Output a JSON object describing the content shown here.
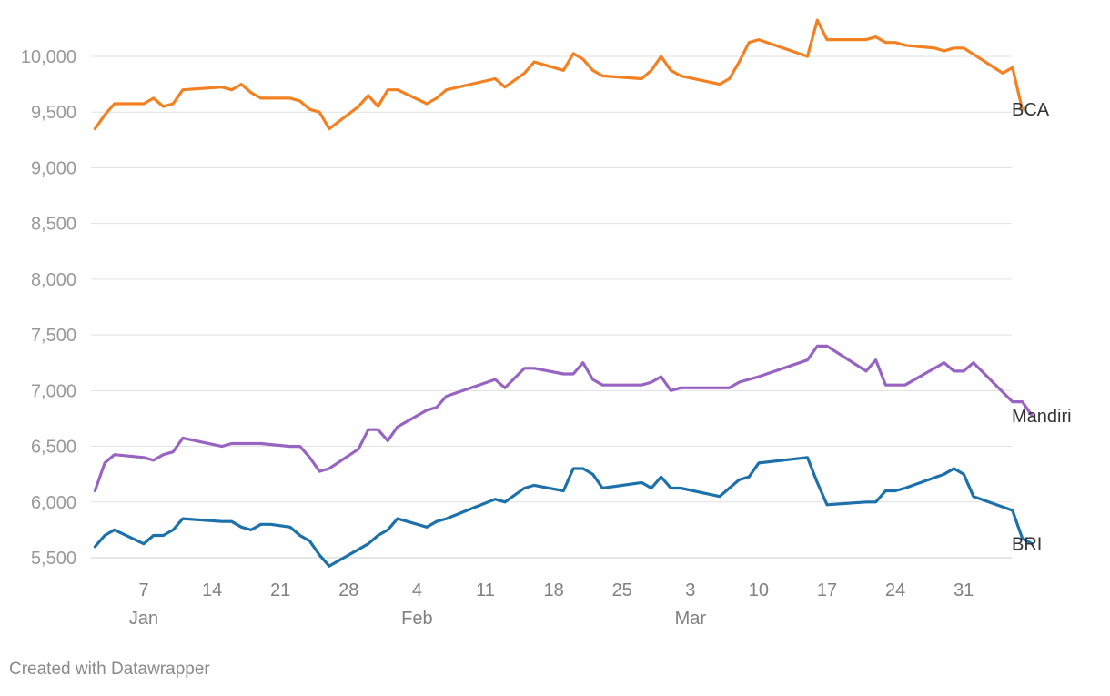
{
  "chart_data": {
    "type": "line",
    "title": "",
    "xlabel": "",
    "ylabel": "",
    "ylim": [
      5500,
      10000
    ],
    "yticks": [
      5500,
      6000,
      6500,
      7000,
      7500,
      8000,
      8500,
      9000,
      9500,
      10000
    ],
    "ytick_labels": [
      "5,500",
      "6,000",
      "6,500",
      "7,000",
      "7,500",
      "8,000",
      "8,500",
      "9,000",
      "9,500",
      "10,000"
    ],
    "xlim": [
      "2020-01-02",
      "2020-04-03"
    ],
    "xticks": [
      {
        "date": "2020-01-07",
        "label": "7",
        "month": "Jan"
      },
      {
        "date": "2020-01-14",
        "label": "14",
        "month": ""
      },
      {
        "date": "2020-01-21",
        "label": "21",
        "month": ""
      },
      {
        "date": "2020-01-28",
        "label": "28",
        "month": ""
      },
      {
        "date": "2020-02-04",
        "label": "4",
        "month": "Feb"
      },
      {
        "date": "2020-02-11",
        "label": "11",
        "month": ""
      },
      {
        "date": "2020-02-18",
        "label": "18",
        "month": ""
      },
      {
        "date": "2020-02-25",
        "label": "25",
        "month": ""
      },
      {
        "date": "2020-03-03",
        "label": "3",
        "month": "Mar"
      },
      {
        "date": "2020-03-10",
        "label": "10",
        "month": ""
      },
      {
        "date": "2020-03-17",
        "label": "17",
        "month": ""
      },
      {
        "date": "2020-03-24",
        "label": "24",
        "month": ""
      },
      {
        "date": "2020-03-31",
        "label": "31",
        "month": ""
      }
    ],
    "grid": true,
    "legend": "none",
    "series": [
      {
        "name": "BCA",
        "color": "#f38021",
        "points": [
          [
            "2020-01-02",
            9350
          ],
          [
            "2020-01-03",
            9475
          ],
          [
            "2020-01-04",
            9575
          ],
          [
            "2020-01-07",
            9575
          ],
          [
            "2020-01-08",
            9625
          ],
          [
            "2020-01-09",
            9550
          ],
          [
            "2020-01-10",
            9575
          ],
          [
            "2020-01-11",
            9700
          ],
          [
            "2020-01-15",
            9725
          ],
          [
            "2020-01-16",
            9700
          ],
          [
            "2020-01-17",
            9750
          ],
          [
            "2020-01-18",
            9675
          ],
          [
            "2020-01-19",
            9625
          ],
          [
            "2020-01-22",
            9625
          ],
          [
            "2020-01-23",
            9600
          ],
          [
            "2020-01-24",
            9525
          ],
          [
            "2020-01-25",
            9500
          ],
          [
            "2020-01-26",
            9350
          ],
          [
            "2020-01-29",
            9550
          ],
          [
            "2020-01-30",
            9650
          ],
          [
            "2020-01-31",
            9550
          ],
          [
            "2020-02-01",
            9700
          ],
          [
            "2020-02-02",
            9700
          ],
          [
            "2020-02-05",
            9575
          ],
          [
            "2020-02-06",
            9625
          ],
          [
            "2020-02-07",
            9700
          ],
          [
            "2020-02-12",
            9800
          ],
          [
            "2020-02-13",
            9725
          ],
          [
            "2020-02-15",
            9850
          ],
          [
            "2020-02-16",
            9950
          ],
          [
            "2020-02-19",
            9875
          ],
          [
            "2020-02-20",
            10025
          ],
          [
            "2020-02-21",
            9975
          ],
          [
            "2020-02-22",
            9875
          ],
          [
            "2020-02-23",
            9825
          ],
          [
            "2020-02-27",
            9800
          ],
          [
            "2020-02-28",
            9875
          ],
          [
            "2020-02-29",
            10000
          ],
          [
            "2020-03-01",
            9875
          ],
          [
            "2020-03-02",
            9825
          ],
          [
            "2020-03-06",
            9750
          ],
          [
            "2020-03-07",
            9800
          ],
          [
            "2020-03-08",
            9950
          ],
          [
            "2020-03-09",
            10125
          ],
          [
            "2020-03-10",
            10150
          ],
          [
            "2020-03-15",
            10000
          ],
          [
            "2020-03-16",
            10325
          ],
          [
            "2020-03-17",
            10150
          ],
          [
            "2020-03-21",
            10150
          ],
          [
            "2020-03-22",
            10175
          ],
          [
            "2020-03-23",
            10125
          ],
          [
            "2020-03-24",
            10125
          ],
          [
            "2020-03-25",
            10100
          ],
          [
            "2020-03-28",
            10075
          ],
          [
            "2020-03-29",
            10050
          ],
          [
            "2020-03-30",
            10075
          ],
          [
            "2020-03-31",
            10075
          ],
          [
            "2020-04-04",
            9850
          ],
          [
            "2020-04-05",
            9900
          ],
          [
            "2020-04-06",
            9525
          ]
        ]
      },
      {
        "name": "Mandiri",
        "color": "#9764c2",
        "points": [
          [
            "2020-01-02",
            6100
          ],
          [
            "2020-01-03",
            6350
          ],
          [
            "2020-01-04",
            6425
          ],
          [
            "2020-01-07",
            6400
          ],
          [
            "2020-01-08",
            6375
          ],
          [
            "2020-01-09",
            6425
          ],
          [
            "2020-01-10",
            6450
          ],
          [
            "2020-01-11",
            6575
          ],
          [
            "2020-01-15",
            6500
          ],
          [
            "2020-01-16",
            6525
          ],
          [
            "2020-01-19",
            6525
          ],
          [
            "2020-01-22",
            6500
          ],
          [
            "2020-01-23",
            6500
          ],
          [
            "2020-01-24",
            6400
          ],
          [
            "2020-01-25",
            6275
          ],
          [
            "2020-01-26",
            6300
          ],
          [
            "2020-01-29",
            6475
          ],
          [
            "2020-01-30",
            6650
          ],
          [
            "2020-01-31",
            6650
          ],
          [
            "2020-02-01",
            6550
          ],
          [
            "2020-02-02",
            6675
          ],
          [
            "2020-02-05",
            6825
          ],
          [
            "2020-02-06",
            6850
          ],
          [
            "2020-02-07",
            6950
          ],
          [
            "2020-02-12",
            7100
          ],
          [
            "2020-02-13",
            7025
          ],
          [
            "2020-02-15",
            7200
          ],
          [
            "2020-02-16",
            7200
          ],
          [
            "2020-02-19",
            7150
          ],
          [
            "2020-02-20",
            7150
          ],
          [
            "2020-02-21",
            7250
          ],
          [
            "2020-02-22",
            7100
          ],
          [
            "2020-02-23",
            7050
          ],
          [
            "2020-02-27",
            7050
          ],
          [
            "2020-02-28",
            7075
          ],
          [
            "2020-02-29",
            7125
          ],
          [
            "2020-03-01",
            7000
          ],
          [
            "2020-03-02",
            7025
          ],
          [
            "2020-03-06",
            7025
          ],
          [
            "2020-03-07",
            7025
          ],
          [
            "2020-03-08",
            7075
          ],
          [
            "2020-03-10",
            7125
          ],
          [
            "2020-03-15",
            7275
          ],
          [
            "2020-03-16",
            7400
          ],
          [
            "2020-03-17",
            7400
          ],
          [
            "2020-03-21",
            7175
          ],
          [
            "2020-03-22",
            7275
          ],
          [
            "2020-03-23",
            7050
          ],
          [
            "2020-03-25",
            7050
          ],
          [
            "2020-03-29",
            7250
          ],
          [
            "2020-03-30",
            7175
          ],
          [
            "2020-03-31",
            7175
          ],
          [
            "2020-04-01",
            7250
          ],
          [
            "2020-04-05",
            6900
          ],
          [
            "2020-04-06",
            6900
          ],
          [
            "2020-04-07",
            6775
          ]
        ]
      },
      {
        "name": "BRI",
        "color": "#1d71aa",
        "points": [
          [
            "2020-01-02",
            5600
          ],
          [
            "2020-01-03",
            5700
          ],
          [
            "2020-01-04",
            5750
          ],
          [
            "2020-01-07",
            5625
          ],
          [
            "2020-01-08",
            5700
          ],
          [
            "2020-01-09",
            5700
          ],
          [
            "2020-01-10",
            5750
          ],
          [
            "2020-01-11",
            5850
          ],
          [
            "2020-01-15",
            5825
          ],
          [
            "2020-01-16",
            5825
          ],
          [
            "2020-01-17",
            5775
          ],
          [
            "2020-01-18",
            5750
          ],
          [
            "2020-01-19",
            5800
          ],
          [
            "2020-01-20",
            5800
          ],
          [
            "2020-01-22",
            5775
          ],
          [
            "2020-01-23",
            5700
          ],
          [
            "2020-01-24",
            5650
          ],
          [
            "2020-01-25",
            5525
          ],
          [
            "2020-01-26",
            5425
          ],
          [
            "2020-01-30",
            5625
          ],
          [
            "2020-01-31",
            5700
          ],
          [
            "2020-02-01",
            5750
          ],
          [
            "2020-02-02",
            5850
          ],
          [
            "2020-02-05",
            5775
          ],
          [
            "2020-02-06",
            5825
          ],
          [
            "2020-02-07",
            5850
          ],
          [
            "2020-02-12",
            6025
          ],
          [
            "2020-02-13",
            6000
          ],
          [
            "2020-02-15",
            6125
          ],
          [
            "2020-02-16",
            6150
          ],
          [
            "2020-02-19",
            6100
          ],
          [
            "2020-02-20",
            6300
          ],
          [
            "2020-02-21",
            6300
          ],
          [
            "2020-02-22",
            6250
          ],
          [
            "2020-02-23",
            6125
          ],
          [
            "2020-02-27",
            6175
          ],
          [
            "2020-02-28",
            6125
          ],
          [
            "2020-02-29",
            6225
          ],
          [
            "2020-03-01",
            6125
          ],
          [
            "2020-03-02",
            6125
          ],
          [
            "2020-03-06",
            6050
          ],
          [
            "2020-03-07",
            6125
          ],
          [
            "2020-03-08",
            6200
          ],
          [
            "2020-03-09",
            6225
          ],
          [
            "2020-03-10",
            6350
          ],
          [
            "2020-03-15",
            6400
          ],
          [
            "2020-03-16",
            6175
          ],
          [
            "2020-03-17",
            5975
          ],
          [
            "2020-03-21",
            6000
          ],
          [
            "2020-03-22",
            6000
          ],
          [
            "2020-03-23",
            6100
          ],
          [
            "2020-03-24",
            6100
          ],
          [
            "2020-03-25",
            6125
          ],
          [
            "2020-03-29",
            6250
          ],
          [
            "2020-03-30",
            6300
          ],
          [
            "2020-03-31",
            6250
          ],
          [
            "2020-04-01",
            6050
          ],
          [
            "2020-04-05",
            5925
          ],
          [
            "2020-04-06",
            5675
          ],
          [
            "2020-04-07",
            5625
          ]
        ]
      }
    ]
  },
  "footer": {
    "credit": "Created with Datawrapper"
  }
}
